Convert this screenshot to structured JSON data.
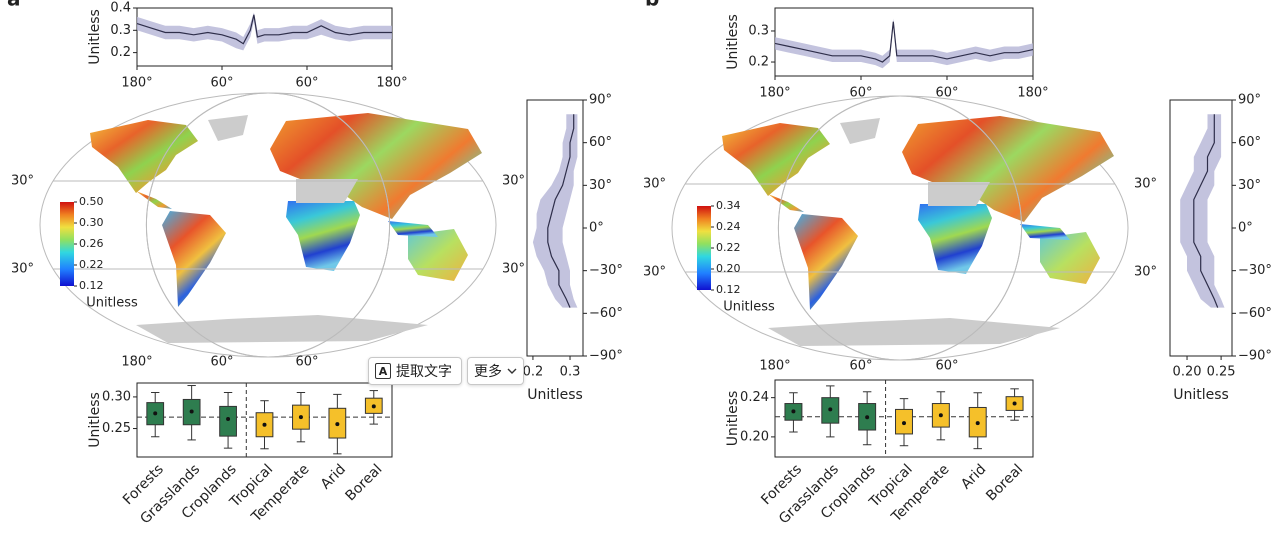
{
  "chart_data": [
    {
      "type": "line",
      "panel_label": "a",
      "ylabel": "Unitless",
      "xlim": [
        -180,
        180
      ],
      "xticks": [
        {
          "value": -180,
          "label": "180°"
        },
        {
          "value": -60,
          "label": "60°"
        },
        {
          "value": 60,
          "label": "60°"
        },
        {
          "value": 180,
          "label": "180°"
        }
      ],
      "ylim": [
        0.14,
        0.4
      ],
      "yticks": [
        0.2,
        0.3,
        0.4
      ],
      "x": [
        -180,
        -160,
        -140,
        -120,
        -100,
        -80,
        -60,
        -40,
        -30,
        -20,
        -15,
        -10,
        0,
        20,
        40,
        60,
        80,
        100,
        120,
        140,
        160,
        180
      ],
      "values": [
        0.33,
        0.31,
        0.29,
        0.29,
        0.28,
        0.29,
        0.28,
        0.26,
        0.24,
        0.3,
        0.37,
        0.27,
        0.28,
        0.28,
        0.29,
        0.29,
        0.32,
        0.29,
        0.28,
        0.29,
        0.29,
        0.29
      ],
      "lower": [
        0.3,
        0.28,
        0.26,
        0.26,
        0.25,
        0.26,
        0.25,
        0.22,
        0.21,
        0.27,
        0.34,
        0.24,
        0.25,
        0.25,
        0.26,
        0.26,
        0.28,
        0.26,
        0.25,
        0.26,
        0.26,
        0.26
      ],
      "upper": [
        0.36,
        0.34,
        0.32,
        0.32,
        0.31,
        0.32,
        0.31,
        0.29,
        0.27,
        0.33,
        0.38,
        0.3,
        0.31,
        0.31,
        0.32,
        0.32,
        0.35,
        0.32,
        0.31,
        0.32,
        0.32,
        0.32
      ],
      "color": "#2e2e4a",
      "band_color": "#b4b4d6"
    },
    {
      "type": "map",
      "parallels": [
        {
          "value": 30,
          "label": "30°"
        },
        {
          "value": -30,
          "label": "30°"
        }
      ],
      "meridians": [
        {
          "value": -180,
          "label": "180°"
        },
        {
          "value": -60,
          "label": "60°"
        },
        {
          "value": 60,
          "label": "60°"
        }
      ],
      "colorbar": {
        "label": "Unitless",
        "ticks": [
          0.12,
          0.22,
          0.26,
          {
            "value": 0.3,
            "label": "0.30"
          },
          {
            "value": 0.5,
            "label": "0.50"
          }
        ]
      }
    },
    {
      "type": "line",
      "orientation": "vertical",
      "xlabel": "Unitless",
      "xlim": [
        0.184,
        0.335
      ],
      "xticks": [
        0.2,
        0.3
      ],
      "ylim": [
        -90,
        90
      ],
      "yticks": [
        {
          "value": 90,
          "label": "90°"
        },
        {
          "value": 60,
          "label": "60°"
        },
        {
          "value": 30,
          "label": "30°"
        },
        {
          "value": 0,
          "label": "0°"
        },
        {
          "value": -30,
          "label": "−30°"
        },
        {
          "value": -60,
          "label": "−60°"
        },
        {
          "value": -90,
          "label": "−90°"
        }
      ],
      "lat": [
        80,
        70,
        60,
        50,
        40,
        30,
        20,
        10,
        0,
        -10,
        -20,
        -30,
        -40,
        -50,
        -56
      ],
      "values": [
        0.31,
        0.31,
        0.3,
        0.3,
        0.29,
        0.28,
        0.26,
        0.25,
        0.24,
        0.24,
        0.25,
        0.27,
        0.27,
        0.29,
        0.3
      ],
      "lower": [
        0.29,
        0.29,
        0.28,
        0.28,
        0.27,
        0.25,
        0.22,
        0.21,
        0.21,
        0.2,
        0.21,
        0.23,
        0.24,
        0.26,
        0.28
      ],
      "upper": [
        0.32,
        0.32,
        0.32,
        0.32,
        0.31,
        0.31,
        0.3,
        0.29,
        0.28,
        0.28,
        0.29,
        0.3,
        0.3,
        0.31,
        0.32
      ],
      "color": "#2e2e4a",
      "band_color": "#b4b4d6"
    },
    {
      "type": "box",
      "ylabel": "Unitless",
      "ylim": [
        0.205,
        0.322
      ],
      "yticks": [
        0.25,
        {
          "value": 0.3,
          "label": "0.30"
        }
      ],
      "categories": [
        "Forests",
        "Grasslands",
        "Croplands",
        "Tropical",
        "Temperate",
        "Arid",
        "Boreal"
      ],
      "colors": [
        "#2e7d4f",
        "#2e7d4f",
        "#2e7d4f",
        "#f5c02a",
        "#f5c02a",
        "#f5c02a",
        "#f5c02a"
      ],
      "boxes": [
        {
          "whislo": 0.237,
          "q1": 0.256,
          "mean": 0.274,
          "q3": 0.291,
          "whishi": 0.307
        },
        {
          "whislo": 0.232,
          "q1": 0.256,
          "mean": 0.277,
          "q3": 0.296,
          "whishi": 0.318
        },
        {
          "whislo": 0.219,
          "q1": 0.238,
          "mean": 0.265,
          "q3": 0.285,
          "whishi": 0.307
        },
        {
          "whislo": 0.218,
          "q1": 0.237,
          "mean": 0.256,
          "q3": 0.275,
          "whishi": 0.294
        },
        {
          "whislo": 0.229,
          "q1": 0.249,
          "mean": 0.268,
          "q3": 0.287,
          "whishi": 0.307
        },
        {
          "whislo": 0.21,
          "q1": 0.235,
          "mean": 0.257,
          "q3": 0.282,
          "whishi": 0.304
        },
        {
          "whislo": 0.257,
          "q1": 0.274,
          "mean": 0.285,
          "q3": 0.298,
          "whishi": 0.31
        }
      ],
      "reference_line": 0.268
    },
    {
      "type": "line",
      "panel_label": "b",
      "ylabel": "Unitless",
      "xlim": [
        -180,
        180
      ],
      "xticks": [
        {
          "value": -180,
          "label": "180°"
        },
        {
          "value": -60,
          "label": "60°"
        },
        {
          "value": 60,
          "label": "60°"
        },
        {
          "value": 180,
          "label": "180°"
        }
      ],
      "ylim": [
        0.155,
        0.374
      ],
      "yticks": [
        0.2,
        0.3
      ],
      "x": [
        -180,
        -160,
        -140,
        -120,
        -100,
        -80,
        -60,
        -40,
        -30,
        -20,
        -15,
        -10,
        0,
        20,
        40,
        60,
        80,
        100,
        120,
        140,
        160,
        180
      ],
      "values": [
        0.26,
        0.25,
        0.24,
        0.23,
        0.22,
        0.22,
        0.22,
        0.21,
        0.2,
        0.22,
        0.33,
        0.22,
        0.22,
        0.22,
        0.22,
        0.21,
        0.22,
        0.23,
        0.22,
        0.23,
        0.23,
        0.24
      ],
      "lower": [
        0.24,
        0.23,
        0.22,
        0.21,
        0.2,
        0.2,
        0.2,
        0.19,
        0.18,
        0.2,
        0.32,
        0.2,
        0.2,
        0.2,
        0.2,
        0.19,
        0.2,
        0.21,
        0.2,
        0.21,
        0.21,
        0.22
      ],
      "upper": [
        0.28,
        0.27,
        0.26,
        0.25,
        0.24,
        0.24,
        0.24,
        0.23,
        0.22,
        0.24,
        0.34,
        0.24,
        0.24,
        0.24,
        0.24,
        0.23,
        0.24,
        0.25,
        0.24,
        0.25,
        0.25,
        0.26
      ],
      "color": "#2e2e4a",
      "band_color": "#b4b4d6"
    },
    {
      "type": "map",
      "parallels": [
        {
          "value": 30,
          "label": "30°"
        },
        {
          "value": -30,
          "label": "30°"
        }
      ],
      "meridians": [
        {
          "value": -180,
          "label": "180°"
        },
        {
          "value": -60,
          "label": "60°"
        },
        {
          "value": 60,
          "label": "60°"
        }
      ],
      "colorbar": {
        "label": "Unitless",
        "ticks": [
          0.12,
          {
            "value": 0.2,
            "label": "0.20"
          },
          0.22,
          0.24,
          0.34
        ]
      }
    },
    {
      "type": "line",
      "orientation": "vertical",
      "xlabel": "Unitless",
      "xlim": [
        0.175,
        0.266
      ],
      "xticks": [
        {
          "value": 0.2,
          "label": "0.20"
        },
        0.25
      ],
      "ylim": [
        -90,
        90
      ],
      "yticks": [
        {
          "value": 90,
          "label": "90°"
        },
        {
          "value": 60,
          "label": "60°"
        },
        {
          "value": 30,
          "label": "30°"
        },
        {
          "value": 0,
          "label": "0°"
        },
        {
          "value": -30,
          "label": "−30°"
        },
        {
          "value": -60,
          "label": "−60°"
        },
        {
          "value": -90,
          "label": "−90°"
        }
      ],
      "lat": [
        80,
        70,
        60,
        50,
        40,
        30,
        20,
        10,
        0,
        -10,
        -20,
        -30,
        -40,
        -50,
        -56
      ],
      "values": [
        0.24,
        0.24,
        0.24,
        0.23,
        0.23,
        0.22,
        0.21,
        0.21,
        0.21,
        0.21,
        0.22,
        0.22,
        0.23,
        0.24,
        0.245
      ],
      "lower": [
        0.23,
        0.23,
        0.22,
        0.21,
        0.21,
        0.2,
        0.19,
        0.19,
        0.19,
        0.19,
        0.2,
        0.2,
        0.21,
        0.22,
        0.235
      ],
      "upper": [
        0.25,
        0.25,
        0.25,
        0.25,
        0.24,
        0.24,
        0.23,
        0.23,
        0.23,
        0.23,
        0.24,
        0.24,
        0.24,
        0.25,
        0.255
      ],
      "color": "#2e2e4a",
      "band_color": "#b4b4d6"
    },
    {
      "type": "box",
      "ylabel": "Unitless",
      "ylim": [
        0.1795,
        0.258
      ],
      "yticks": [
        {
          "value": 0.2,
          "label": "0.20"
        },
        0.24
      ],
      "categories": [
        "Forests",
        "Grasslands",
        "Croplands",
        "Tropical",
        "Temperate",
        "Arid",
        "Boreal"
      ],
      "colors": [
        "#2e7d4f",
        "#2e7d4f",
        "#2e7d4f",
        "#f5c02a",
        "#f5c02a",
        "#f5c02a",
        "#f5c02a"
      ],
      "boxes": [
        {
          "whislo": 0.205,
          "q1": 0.217,
          "mean": 0.226,
          "q3": 0.234,
          "whishi": 0.245
        },
        {
          "whislo": 0.2,
          "q1": 0.214,
          "mean": 0.228,
          "q3": 0.24,
          "whishi": 0.252
        },
        {
          "whislo": 0.192,
          "q1": 0.207,
          "mean": 0.22,
          "q3": 0.234,
          "whishi": 0.246
        },
        {
          "whislo": 0.191,
          "q1": 0.203,
          "mean": 0.214,
          "q3": 0.228,
          "whishi": 0.239
        },
        {
          "whislo": 0.197,
          "q1": 0.21,
          "mean": 0.222,
          "q3": 0.234,
          "whishi": 0.246
        },
        {
          "whislo": 0.188,
          "q1": 0.2,
          "mean": 0.214,
          "q3": 0.23,
          "whishi": 0.245
        },
        {
          "whislo": 0.217,
          "q1": 0.227,
          "mean": 0.234,
          "q3": 0.241,
          "whishi": 0.249
        }
      ],
      "reference_line": 0.2205
    }
  ],
  "overlay": {
    "icon": "A",
    "extract_text": "提取文字",
    "more": "更多"
  }
}
